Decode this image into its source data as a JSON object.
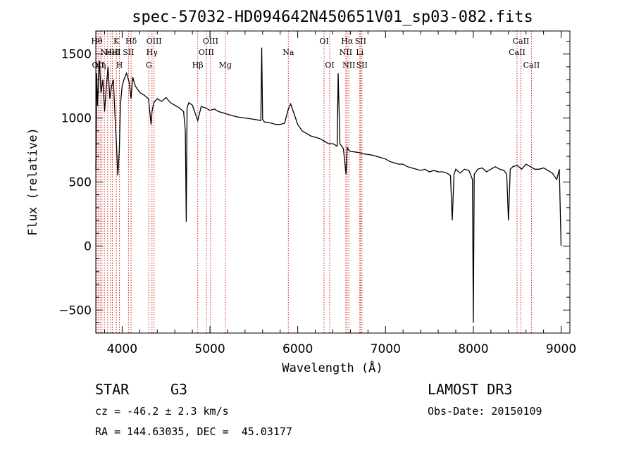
{
  "chart_data": {
    "type": "line",
    "title": "spec-57032-HD094642N450651V01_sp03-082.fits",
    "xlabel": "Wavelength (Å)",
    "ylabel": "Flux (relative)",
    "xlim": [
      3700,
      9100
    ],
    "ylim": [
      -680,
      1680
    ],
    "xticks": [
      4000,
      5000,
      6000,
      7000,
      8000,
      9000
    ],
    "yticks": [
      -500,
      0,
      500,
      1000,
      1500
    ],
    "series": [
      {
        "name": "flux",
        "x": [
          3700,
          3710,
          3720,
          3740,
          3760,
          3780,
          3800,
          3820,
          3840,
          3860,
          3880,
          3900,
          3920,
          3935,
          3950,
          3968,
          3980,
          4000,
          4020,
          4050,
          4080,
          4101,
          4120,
          4150,
          4200,
          4250,
          4300,
          4330,
          4340,
          4360,
          4400,
          4450,
          4500,
          4550,
          4600,
          4650,
          4700,
          4720,
          4730,
          4740,
          4760,
          4800,
          4861,
          4900,
          4950,
          5000,
          5050,
          5100,
          5150,
          5200,
          5250,
          5300,
          5400,
          5500,
          5580,
          5590,
          5600,
          5620,
          5700,
          5750,
          5800,
          5850,
          5893,
          5920,
          5950,
          6000,
          6050,
          6100,
          6150,
          6200,
          6250,
          6300,
          6350,
          6400,
          6450,
          6460,
          6480,
          6500,
          6520,
          6550,
          6563,
          6580,
          6600,
          6650,
          6700,
          6750,
          6800,
          6850,
          6900,
          6950,
          7000,
          7050,
          7100,
          7150,
          7200,
          7250,
          7300,
          7350,
          7400,
          7450,
          7500,
          7550,
          7600,
          7650,
          7700,
          7740,
          7760,
          7780,
          7800,
          7850,
          7900,
          7950,
          7990,
          8000,
          8010,
          8050,
          8100,
          8150,
          8200,
          8250,
          8300,
          8350,
          8380,
          8400,
          8420,
          8450,
          8500,
          8550,
          8600,
          8650,
          8700,
          8750,
          8800,
          8850,
          8900,
          8950,
          8980,
          9000
        ],
        "y": [
          600,
          1350,
          1100,
          1450,
          1200,
          1300,
          1050,
          1250,
          1400,
          1150,
          1250,
          1300,
          1000,
          800,
          550,
          750,
          1100,
          1250,
          1300,
          1350,
          1280,
          1150,
          1320,
          1250,
          1200,
          1180,
          1150,
          950,
          1050,
          1120,
          1150,
          1130,
          1160,
          1120,
          1100,
          1080,
          1050,
          900,
          190,
          1080,
          1120,
          1100,
          980,
          1090,
          1080,
          1060,
          1070,
          1050,
          1040,
          1030,
          1020,
          1010,
          1000,
          990,
          980,
          1550,
          990,
          970,
          960,
          950,
          950,
          960,
          1070,
          1110,
          1050,
          950,
          900,
          880,
          860,
          850,
          840,
          820,
          800,
          800,
          780,
          1350,
          800,
          780,
          760,
          560,
          770,
          750,
          740,
          735,
          730,
          720,
          715,
          710,
          700,
          690,
          680,
          660,
          650,
          640,
          640,
          620,
          610,
          600,
          590,
          600,
          580,
          590,
          580,
          580,
          570,
          550,
          200,
          560,
          600,
          570,
          600,
          590,
          520,
          -600,
          560,
          600,
          610,
          580,
          600,
          620,
          600,
          590,
          560,
          200,
          600,
          620,
          630,
          600,
          640,
          620,
          600,
          600,
          610,
          590,
          570,
          520,
          600,
          0
        ]
      }
    ],
    "line_markers": [
      {
        "wavelength": 3712,
        "label": "Hθ",
        "row": 1
      },
      {
        "wavelength": 3727,
        "label": "OII",
        "row": 3
      },
      {
        "wavelength": 3750,
        "label": "Hη",
        "row": 3
      },
      {
        "wavelength": 3770,
        "label": "",
        "row": 0
      },
      {
        "wavelength": 3798,
        "label": "",
        "row": 0
      },
      {
        "wavelength": 3835,
        "label": "",
        "row": 0
      },
      {
        "wavelength": 3869,
        "label": "NeIII",
        "row": 2
      },
      {
        "wavelength": 3889,
        "label": "HeI",
        "row": 2
      },
      {
        "wavelength": 3934,
        "label": "K",
        "row": 1
      },
      {
        "wavelength": 3969,
        "label": "H",
        "row": 3
      },
      {
        "wavelength": 4072,
        "label": "SII",
        "row": 2
      },
      {
        "wavelength": 4102,
        "label": "Hδ",
        "row": 1
      },
      {
        "wavelength": 4304,
        "label": "G",
        "row": 3
      },
      {
        "wavelength": 4340,
        "label": "Hγ",
        "row": 2
      },
      {
        "wavelength": 4363,
        "label": "OIII",
        "row": 1
      },
      {
        "wavelength": 4861,
        "label": "Hβ",
        "row": 3
      },
      {
        "wavelength": 4959,
        "label": "OIII",
        "row": 2
      },
      {
        "wavelength": 5007,
        "label": "OIII",
        "row": 1
      },
      {
        "wavelength": 5175,
        "label": "Mg",
        "row": 3
      },
      {
        "wavelength": 5893,
        "label": "Na",
        "row": 2
      },
      {
        "wavelength": 6300,
        "label": "OI",
        "row": 1
      },
      {
        "wavelength": 6364,
        "label": "OI",
        "row": 3
      },
      {
        "wavelength": 6548,
        "label": "NII",
        "row": 2
      },
      {
        "wavelength": 6563,
        "label": "Hα",
        "row": 1
      },
      {
        "wavelength": 6583,
        "label": "NII",
        "row": 3
      },
      {
        "wavelength": 6716,
        "label": "SII",
        "row": 1
      },
      {
        "wavelength": 6707,
        "label": "Li",
        "row": 2
      },
      {
        "wavelength": 6731,
        "label": "SII",
        "row": 3
      },
      {
        "wavelength": 8498,
        "label": "CaII",
        "row": 2
      },
      {
        "wavelength": 8542,
        "label": "CaII",
        "row": 1
      },
      {
        "wavelength": 8662,
        "label": "CaII",
        "row": 3
      }
    ],
    "marker_color": "#d4201f",
    "line_color": "#000000"
  },
  "info": {
    "object_class": "STAR",
    "subclass": "G3",
    "survey": "LAMOST DR3",
    "redshift": "cz = -46.2 ± 2.3 km/s",
    "obs_date": "Obs-Date: 20150109",
    "coords": "RA = 144.63035, DEC =  45.03177"
  }
}
